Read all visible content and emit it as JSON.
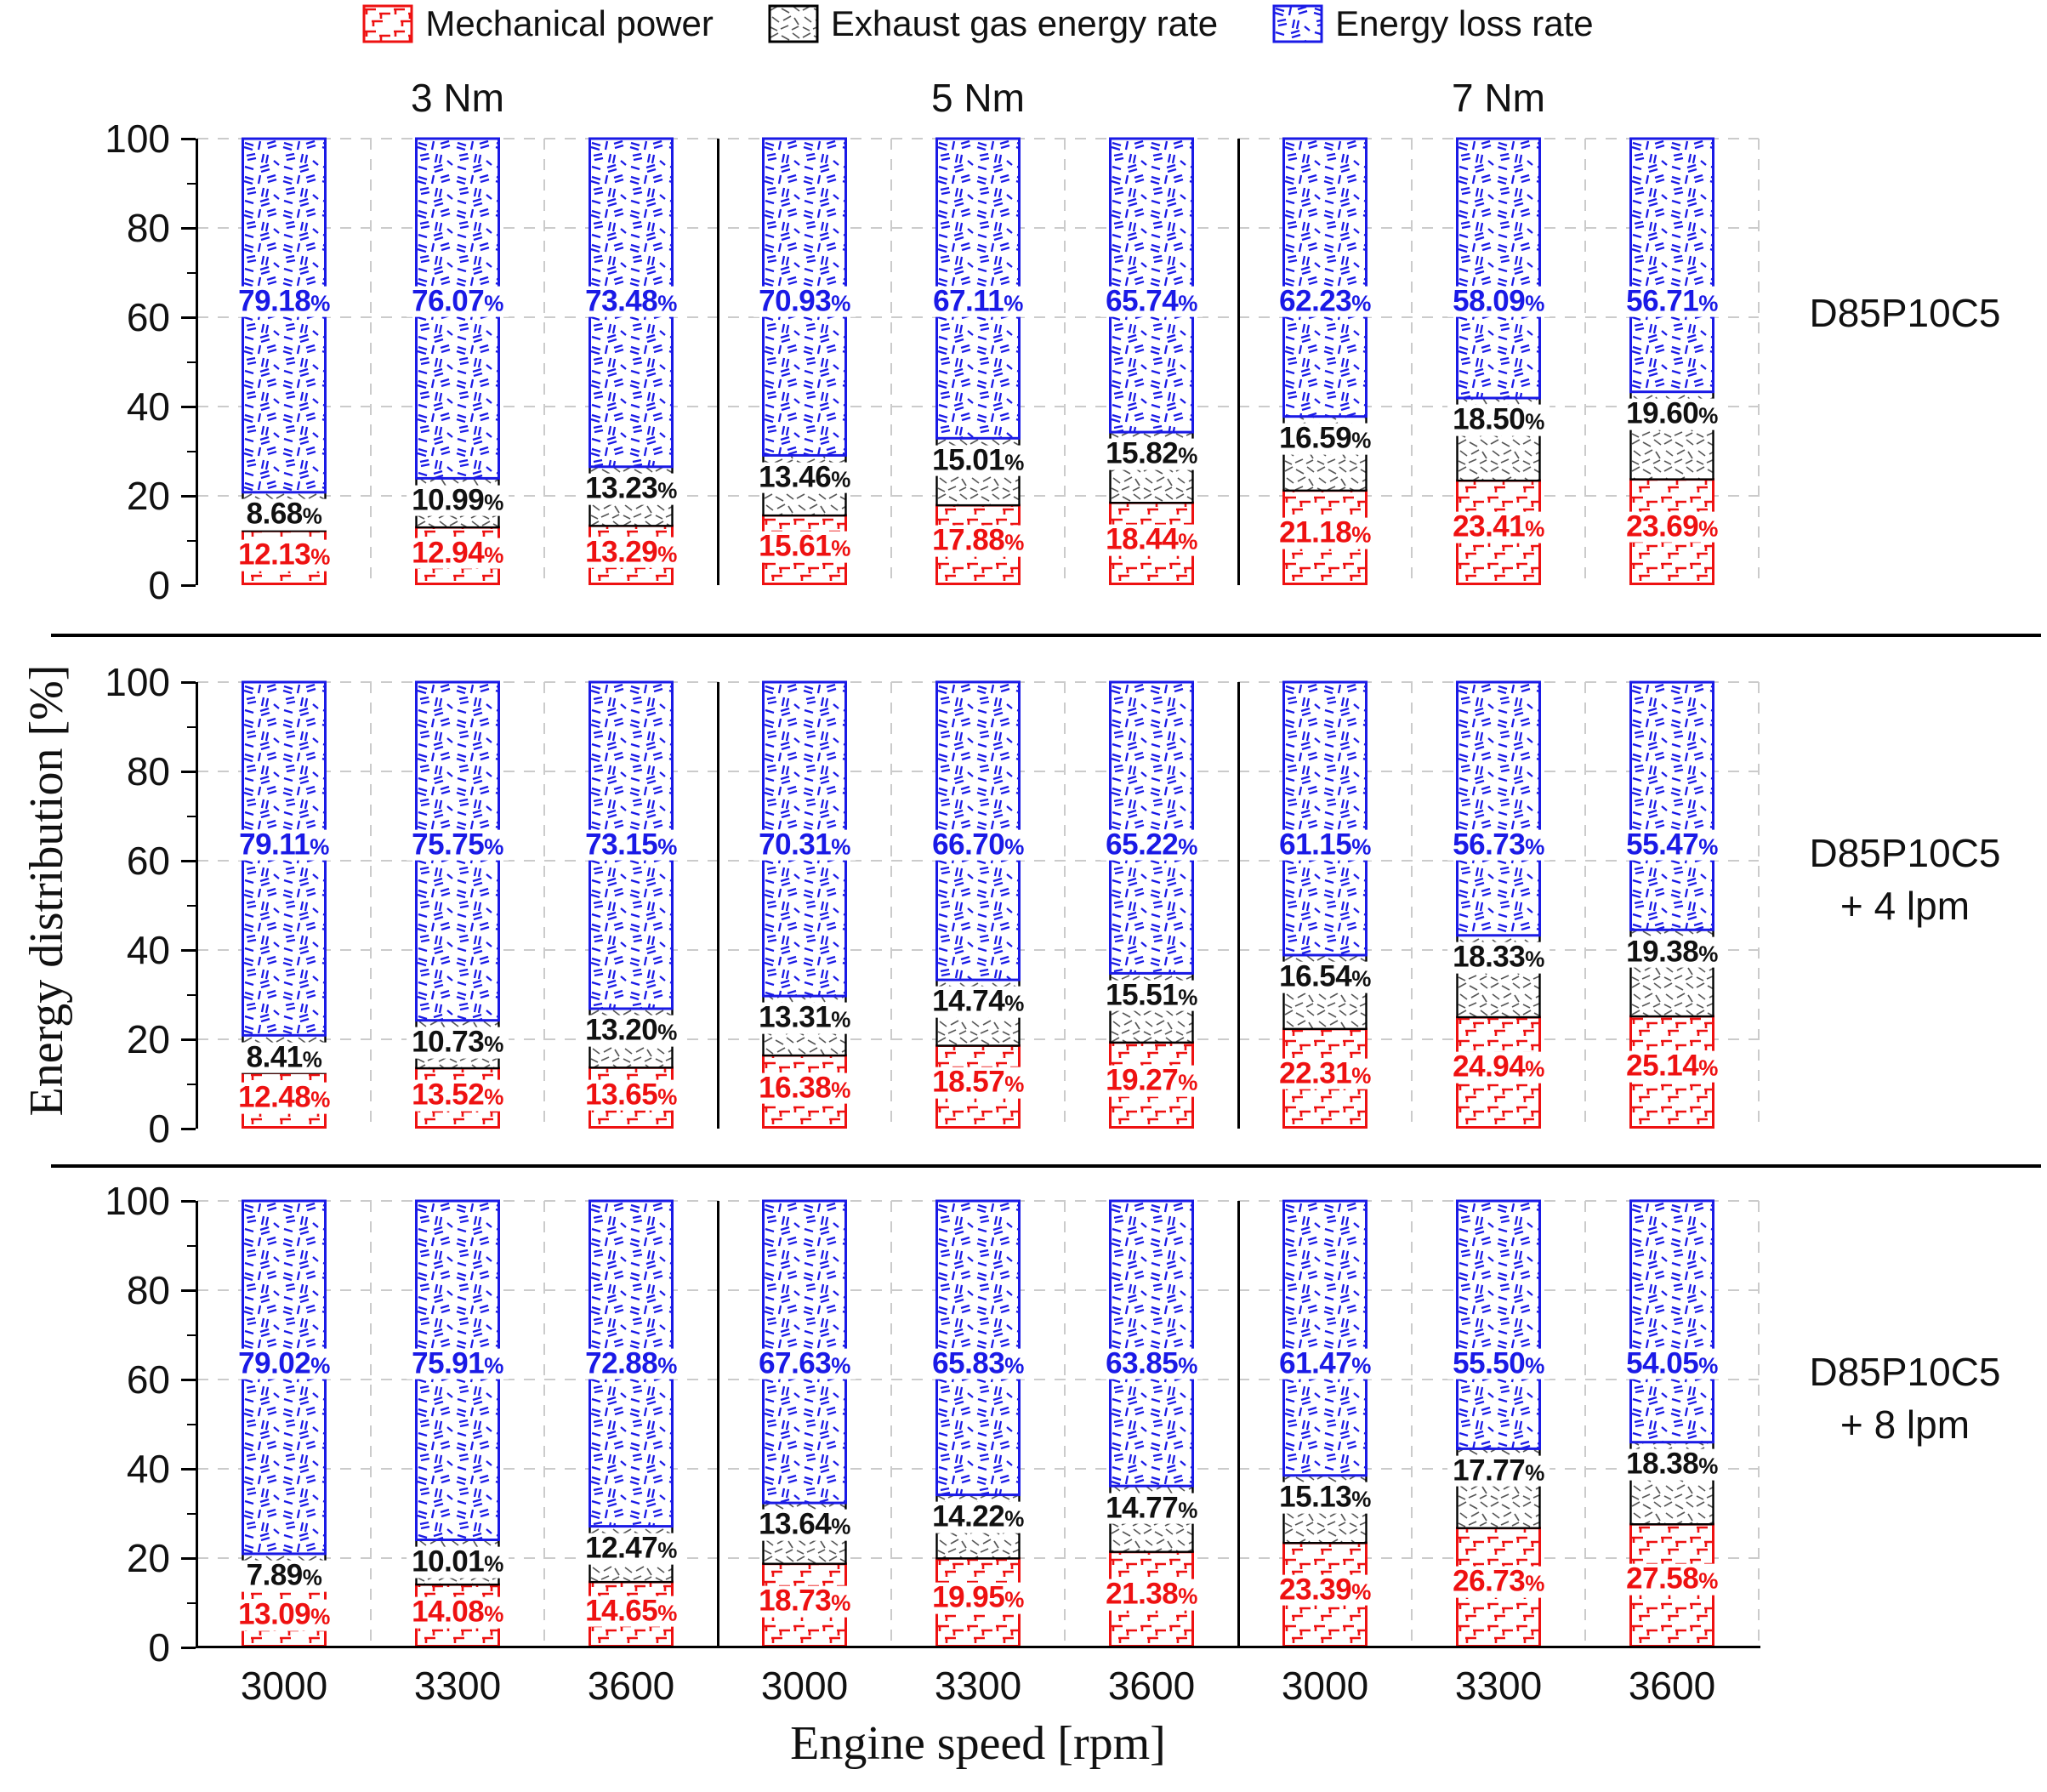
{
  "legend": {
    "items": [
      {
        "label": "Mechanical power",
        "color": "#ee1111",
        "pattern": "mech-red-hatch"
      },
      {
        "label": "Exhaust gas energy rate",
        "color": "#000000",
        "pattern": "exhaust-gray-speckle"
      },
      {
        "label": "Energy loss rate",
        "color": "#1a1ae6",
        "pattern": "loss-blue-speckle"
      }
    ]
  },
  "colors": {
    "mechanical_red": "#ee1111",
    "loss_blue": "#1a1ae6",
    "exhaust_black": "#000000",
    "exhaust_hatch_gray": "#575757",
    "grid_gray": "#cbcbcb"
  },
  "chart_data": {
    "type": "bar",
    "stacked": true,
    "unit": "%",
    "xlabel": "Engine speed [rpm]",
    "ylabel": "Energy distribution  [%]",
    "ylim": [
      0,
      100
    ],
    "yticks": [
      0,
      20,
      40,
      60,
      80,
      100
    ],
    "grid": true,
    "legend_position": "top",
    "group_headers": [
      "3 Nm",
      "5 Nm",
      "7 Nm"
    ],
    "x_categories": [
      "3000",
      "3300",
      "3600"
    ],
    "series_order": [
      "Mechanical power",
      "Exhaust gas energy rate",
      "Energy loss rate"
    ],
    "panels": [
      {
        "row_label_lines": [
          "D85P10C5"
        ],
        "bars": [
          {
            "torque": "3 Nm",
            "speed": "3000",
            "mechanical": 12.13,
            "exhaust": 8.68,
            "loss": 79.18
          },
          {
            "torque": "3 Nm",
            "speed": "3300",
            "mechanical": 12.94,
            "exhaust": 10.99,
            "loss": 76.07
          },
          {
            "torque": "3 Nm",
            "speed": "3600",
            "mechanical": 13.29,
            "exhaust": 13.23,
            "loss": 73.48
          },
          {
            "torque": "5 Nm",
            "speed": "3000",
            "mechanical": 15.61,
            "exhaust": 13.46,
            "loss": 70.93
          },
          {
            "torque": "5 Nm",
            "speed": "3300",
            "mechanical": 17.88,
            "exhaust": 15.01,
            "loss": 67.11
          },
          {
            "torque": "5 Nm",
            "speed": "3600",
            "mechanical": 18.44,
            "exhaust": 15.82,
            "loss": 65.74
          },
          {
            "torque": "7 Nm",
            "speed": "3000",
            "mechanical": 21.18,
            "exhaust": 16.59,
            "loss": 62.23
          },
          {
            "torque": "7 Nm",
            "speed": "3300",
            "mechanical": 23.41,
            "exhaust": 18.5,
            "loss": 58.09
          },
          {
            "torque": "7 Nm",
            "speed": "3600",
            "mechanical": 23.69,
            "exhaust": 19.6,
            "loss": 56.71
          }
        ]
      },
      {
        "row_label_lines": [
          "D85P10C5",
          "+ 4 lpm"
        ],
        "bars": [
          {
            "torque": "3 Nm",
            "speed": "3000",
            "mechanical": 12.48,
            "exhaust": 8.41,
            "loss": 79.11
          },
          {
            "torque": "3 Nm",
            "speed": "3300",
            "mechanical": 13.52,
            "exhaust": 10.73,
            "loss": 75.75
          },
          {
            "torque": "3 Nm",
            "speed": "3600",
            "mechanical": 13.65,
            "exhaust": 13.2,
            "loss": 73.15
          },
          {
            "torque": "5 Nm",
            "speed": "3000",
            "mechanical": 16.38,
            "exhaust": 13.31,
            "loss": 70.31
          },
          {
            "torque": "5 Nm",
            "speed": "3300",
            "mechanical": 18.57,
            "exhaust": 14.74,
            "loss": 66.7
          },
          {
            "torque": "5 Nm",
            "speed": "3600",
            "mechanical": 19.27,
            "exhaust": 15.51,
            "loss": 65.22
          },
          {
            "torque": "7 Nm",
            "speed": "3000",
            "mechanical": 22.31,
            "exhaust": 16.54,
            "loss": 61.15
          },
          {
            "torque": "7 Nm",
            "speed": "3300",
            "mechanical": 24.94,
            "exhaust": 18.33,
            "loss": 56.73
          },
          {
            "torque": "7 Nm",
            "speed": "3600",
            "mechanical": 25.14,
            "exhaust": 19.38,
            "loss": 55.47
          }
        ]
      },
      {
        "row_label_lines": [
          "D85P10C5",
          "+ 8 lpm"
        ],
        "bars": [
          {
            "torque": "3 Nm",
            "speed": "3000",
            "mechanical": 13.09,
            "exhaust": 7.89,
            "loss": 79.02
          },
          {
            "torque": "3 Nm",
            "speed": "3300",
            "mechanical": 14.08,
            "exhaust": 10.01,
            "loss": 75.91
          },
          {
            "torque": "3 Nm",
            "speed": "3600",
            "mechanical": 14.65,
            "exhaust": 12.47,
            "loss": 72.88
          },
          {
            "torque": "5 Nm",
            "speed": "3000",
            "mechanical": 18.73,
            "exhaust": 13.64,
            "loss": 67.63
          },
          {
            "torque": "5 Nm",
            "speed": "3300",
            "mechanical": 19.95,
            "exhaust": 14.22,
            "loss": 65.83
          },
          {
            "torque": "5 Nm",
            "speed": "3600",
            "mechanical": 21.38,
            "exhaust": 14.77,
            "loss": 63.85
          },
          {
            "torque": "7 Nm",
            "speed": "3000",
            "mechanical": 23.39,
            "exhaust": 15.13,
            "loss": 61.47
          },
          {
            "torque": "7 Nm",
            "speed": "3300",
            "mechanical": 26.73,
            "exhaust": 17.77,
            "loss": 55.5
          },
          {
            "torque": "7 Nm",
            "speed": "3600",
            "mechanical": 27.58,
            "exhaust": 18.38,
            "loss": 54.05
          }
        ]
      }
    ]
  }
}
